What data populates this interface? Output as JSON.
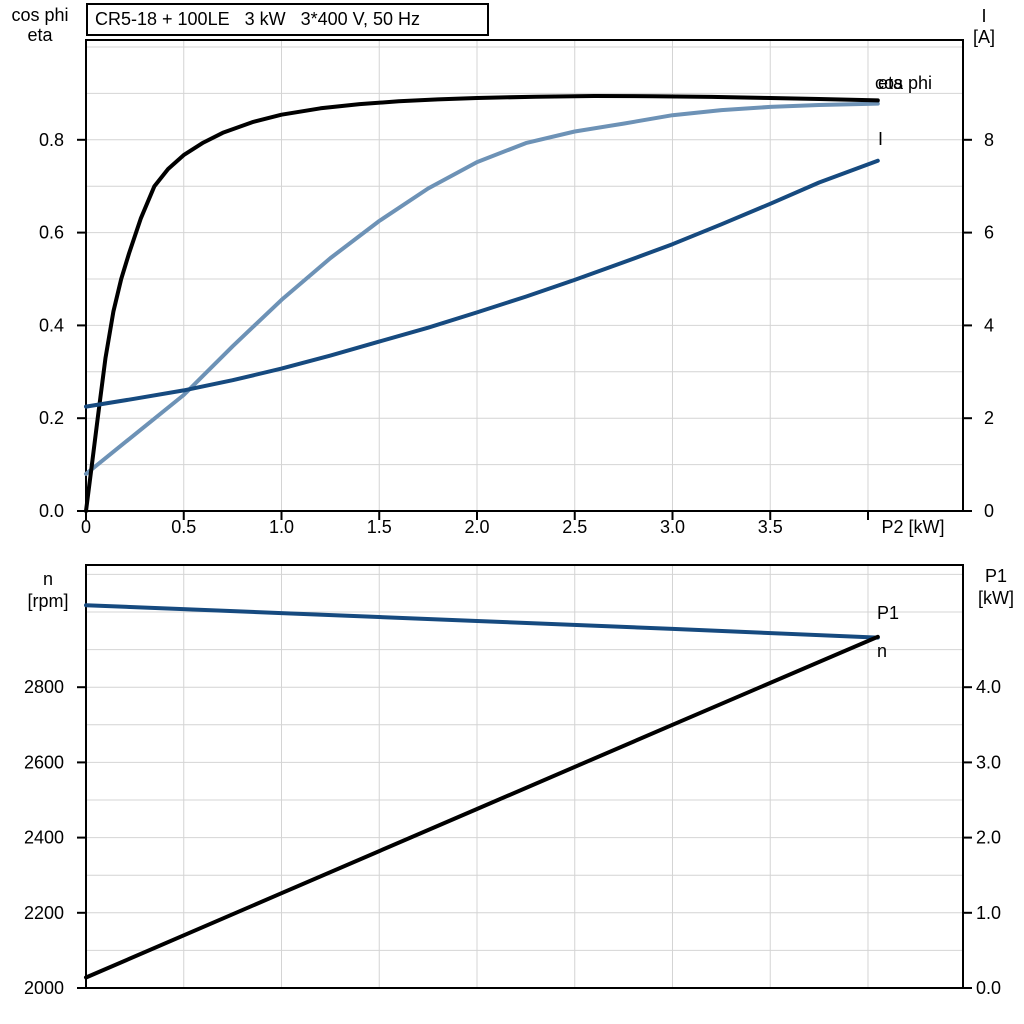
{
  "page": {
    "background": "#ffffff"
  },
  "title_box": {
    "text": "CR5-18 + 100LE   3 kW   3*400 V, 50 Hz"
  },
  "colors": {
    "black": "#000000",
    "light_blue": "#6D92B6",
    "dark_blue": "#164A7F",
    "grid": "#d4d4d4",
    "frame": "#000000"
  },
  "chart_data": [
    {
      "id": "motor-efficiency-chart",
      "type": "line",
      "title": "CR5-18 + 100LE   3 kW   3*400 V, 50 Hz",
      "xlabel": "P2 [kW]",
      "xlim": [
        0,
        4.486
      ],
      "grid": "on",
      "x_grid": [
        0.5,
        1.0,
        1.5,
        2.0,
        2.5,
        3.0,
        3.5,
        4.0
      ],
      "x_ticks": [
        {
          "v": 0,
          "label": "0"
        },
        {
          "v": 0.5,
          "label": "0.5"
        },
        {
          "v": 1.0,
          "label": "1.0"
        },
        {
          "v": 1.5,
          "label": "1.5"
        },
        {
          "v": 2.0,
          "label": "2.0"
        },
        {
          "v": 2.5,
          "label": "2.5"
        },
        {
          "v": 3.0,
          "label": "3.0"
        },
        {
          "v": 3.5,
          "label": "3.5"
        },
        {
          "v": 4.0,
          "label": ""
        }
      ],
      "left_axis": {
        "title_lines": [
          "cos phi",
          "eta"
        ],
        "lim": [
          0,
          1.0151
        ],
        "grid": [
          0.1,
          0.2,
          0.3,
          0.4,
          0.5,
          0.6,
          0.7,
          0.8,
          0.9,
          1.0
        ],
        "ticks": [
          {
            "v": 0.0,
            "label": "0.0"
          },
          {
            "v": 0.2,
            "label": "0.2"
          },
          {
            "v": 0.4,
            "label": "0.4"
          },
          {
            "v": 0.6,
            "label": "0.6"
          },
          {
            "v": 0.8,
            "label": "0.8"
          }
        ]
      },
      "right_axis": {
        "title_lines": [
          "I",
          "[A]"
        ],
        "lim": [
          0,
          10.151
        ],
        "ticks": [
          {
            "v": 0,
            "label": "0"
          },
          {
            "v": 2,
            "label": "2"
          },
          {
            "v": 4,
            "label": "4"
          },
          {
            "v": 6,
            "label": "6"
          },
          {
            "v": 8,
            "label": "8"
          }
        ]
      },
      "series": [
        {
          "name": "cos phi",
          "label": "cos phi",
          "axis": "left",
          "color": "#6D92B6",
          "points": [
            [
              0,
              0.08
            ],
            [
              0.25,
              0.165
            ],
            [
              0.5,
              0.25
            ],
            [
              0.75,
              0.355
            ],
            [
              1.0,
              0.455
            ],
            [
              1.25,
              0.545
            ],
            [
              1.5,
              0.625
            ],
            [
              1.75,
              0.695
            ],
            [
              2.0,
              0.752
            ],
            [
              2.25,
              0.793
            ],
            [
              2.5,
              0.818
            ],
            [
              2.75,
              0.835
            ],
            [
              3.0,
              0.853
            ],
            [
              3.25,
              0.864
            ],
            [
              3.5,
              0.871
            ],
            [
              3.75,
              0.875
            ],
            [
              4.05,
              0.878
            ]
          ]
        },
        {
          "name": "eta",
          "label": "eta",
          "axis": "left",
          "color": "#000000",
          "points": [
            [
              0,
              0
            ],
            [
              0.03,
              0.1
            ],
            [
              0.06,
              0.2
            ],
            [
              0.1,
              0.33
            ],
            [
              0.14,
              0.43
            ],
            [
              0.18,
              0.5
            ],
            [
              0.22,
              0.555
            ],
            [
              0.28,
              0.63
            ],
            [
              0.35,
              0.7
            ],
            [
              0.42,
              0.737
            ],
            [
              0.5,
              0.767
            ],
            [
              0.6,
              0.794
            ],
            [
              0.7,
              0.815
            ],
            [
              0.85,
              0.838
            ],
            [
              1.0,
              0.854
            ],
            [
              1.2,
              0.868
            ],
            [
              1.4,
              0.877
            ],
            [
              1.6,
              0.883
            ],
            [
              1.8,
              0.887
            ],
            [
              2.0,
              0.89
            ],
            [
              2.3,
              0.893
            ],
            [
              2.6,
              0.8945
            ],
            [
              2.9,
              0.894
            ],
            [
              3.2,
              0.8925
            ],
            [
              3.5,
              0.89
            ],
            [
              3.75,
              0.888
            ],
            [
              4.05,
              0.885
            ]
          ]
        },
        {
          "name": "I",
          "label": "I",
          "axis": "right",
          "color": "#164A7F",
          "points": [
            [
              0,
              2.25
            ],
            [
              0.25,
              2.42
            ],
            [
              0.5,
              2.6
            ],
            [
              0.75,
              2.82
            ],
            [
              1.0,
              3.07
            ],
            [
              1.25,
              3.35
            ],
            [
              1.5,
              3.65
            ],
            [
              1.75,
              3.95
            ],
            [
              2.0,
              4.28
            ],
            [
              2.25,
              4.62
            ],
            [
              2.5,
              4.98
            ],
            [
              2.75,
              5.36
            ],
            [
              3.0,
              5.75
            ],
            [
              3.25,
              6.18
            ],
            [
              3.5,
              6.62
            ],
            [
              3.75,
              7.08
            ],
            [
              4.05,
              7.55
            ]
          ]
        }
      ]
    },
    {
      "id": "speed-power-chart",
      "type": "line",
      "xlabel": "",
      "xlim": [
        0,
        4.486
      ],
      "grid": "on",
      "x_grid": [
        0.5,
        1.0,
        1.5,
        2.0,
        2.5,
        3.0,
        3.5,
        4.0
      ],
      "x_ticks": [],
      "left_axis": {
        "title_lines": [
          "n",
          "[rpm]"
        ],
        "lim": [
          2000,
          3125
        ],
        "grid": [
          2100,
          2200,
          2300,
          2400,
          2500,
          2600,
          2700,
          2800,
          2900,
          3000,
          3100
        ],
        "ticks": [
          {
            "v": 2000,
            "label": "2000"
          },
          {
            "v": 2200,
            "label": "2200"
          },
          {
            "v": 2400,
            "label": "2400"
          },
          {
            "v": 2600,
            "label": "2600"
          },
          {
            "v": 2800,
            "label": "2800"
          }
        ]
      },
      "right_axis": {
        "title_lines": [
          "P1",
          "[kW]"
        ],
        "lim": [
          0,
          5.625
        ],
        "ticks": [
          {
            "v": 0,
            "label": "0.0"
          },
          {
            "v": 1,
            "label": "1.0"
          },
          {
            "v": 2,
            "label": "2.0"
          },
          {
            "v": 3,
            "label": "3.0"
          },
          {
            "v": 4,
            "label": "4.0"
          }
        ]
      },
      "series": [
        {
          "name": "n",
          "label": "n",
          "axis": "left",
          "color": "#164A7F",
          "points": [
            [
              0,
              3018
            ],
            [
              1.0,
              2997
            ],
            [
              2.0,
              2976
            ],
            [
              3.0,
              2955
            ],
            [
              4.05,
              2932
            ]
          ]
        },
        {
          "name": "P1",
          "label": "P1",
          "axis": "right",
          "color": "#000000",
          "points": [
            [
              0,
              0.14
            ],
            [
              1.0,
              1.26
            ],
            [
              2.0,
              2.38
            ],
            [
              3.0,
              3.5
            ],
            [
              4.05,
              4.67
            ]
          ]
        }
      ]
    }
  ]
}
